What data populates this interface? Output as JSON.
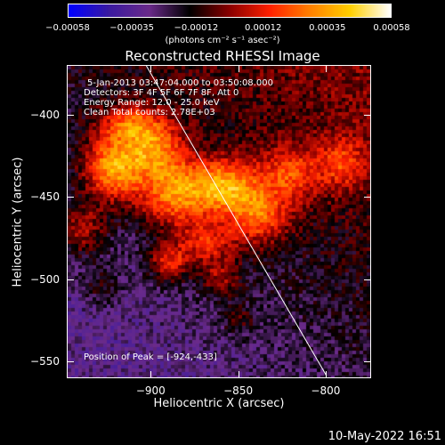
{
  "colorbar": {
    "ticks": [
      "−0.00058",
      "−0.00035",
      "−0.00012",
      "0.00012",
      "0.00035",
      "0.00058"
    ],
    "tick_values": [
      -0.00058,
      -0.00035,
      -0.00012,
      0.00012,
      0.00035,
      0.00058
    ],
    "range": [
      -0.00058,
      0.00058
    ],
    "units": "(photons cm⁻² s⁻¹ asec⁻²)",
    "colors": [
      "#0000ff",
      "#3a1aa0",
      "#6a2a8a",
      "#000000",
      "#8a0000",
      "#ff2000",
      "#ff8000",
      "#ffd000",
      "#ffffff"
    ]
  },
  "chart_data": {
    "type": "heatmap",
    "title": "Reconstructed RHESSI Image",
    "xlabel": "Heliocentric X (arcsec)",
    "ylabel": "Heliocentric Y (arcsec)",
    "xlim": [
      -948,
      -774
    ],
    "ylim": [
      -560,
      -370
    ],
    "x_ticks": [
      -900,
      -850,
      -800
    ],
    "y_ticks": [
      -400,
      -450,
      -500,
      -550
    ],
    "x_tick_labels": [
      "−900",
      "−850",
      "−800"
    ],
    "y_tick_labels": [
      "−400",
      "−450",
      "−500",
      "−550"
    ],
    "limb_line": {
      "x": [
        -903,
        -800
      ],
      "y": [
        -370,
        -558
      ]
    },
    "peak": {
      "x": -924,
      "y": -433
    },
    "sources": [
      {
        "x": -922,
        "y": -432,
        "amp": 0.00052,
        "sx": 12,
        "sy": 14
      },
      {
        "x": -898,
        "y": -420,
        "amp": 0.0004,
        "sx": 12,
        "sy": 12
      },
      {
        "x": -888,
        "y": -448,
        "amp": 0.00045,
        "sx": 14,
        "sy": 14
      },
      {
        "x": -858,
        "y": -444,
        "amp": 0.0005,
        "sx": 14,
        "sy": 12
      },
      {
        "x": -838,
        "y": -462,
        "amp": 0.00036,
        "sx": 12,
        "sy": 12
      },
      {
        "x": -868,
        "y": -478,
        "amp": 0.0003,
        "sx": 12,
        "sy": 10
      },
      {
        "x": -890,
        "y": -490,
        "amp": 0.00034,
        "sx": 8,
        "sy": 8
      },
      {
        "x": -820,
        "y": -436,
        "amp": 0.0003,
        "sx": 12,
        "sy": 12
      },
      {
        "x": -790,
        "y": -430,
        "amp": 0.00026,
        "sx": 10,
        "sy": 12
      },
      {
        "x": -940,
        "y": -470,
        "amp": 0.00028,
        "sx": 10,
        "sy": 12
      },
      {
        "x": -912,
        "y": -405,
        "amp": 0.00032,
        "sx": 12,
        "sy": 8
      },
      {
        "x": -860,
        "y": -500,
        "amp": 0.00022,
        "sx": 8,
        "sy": 8
      },
      {
        "x": -850,
        "y": -525,
        "amp": 0.00016,
        "sx": 6,
        "sy": 6
      },
      {
        "x": -930,
        "y": -505,
        "amp": 0.00014,
        "sx": 8,
        "sy": 8
      }
    ],
    "background_gradient": {
      "upper_right": -2e-05,
      "lower_left": -0.0003
    }
  },
  "annotations": {
    "time_range": "5-Jan-2013 03:47:04.000 to 03:50:08.000",
    "detectors": "Detectors: 3F 4F 5F 6F 7F 8F, Att 0",
    "energy": "Energy Range: 12.0 - 25.0 keV",
    "clean": "Clean    Total counts: 2.78E+03",
    "peak": "Position of Peak = [-924,-433]"
  },
  "timestamp": "10-May-2022 16:51"
}
